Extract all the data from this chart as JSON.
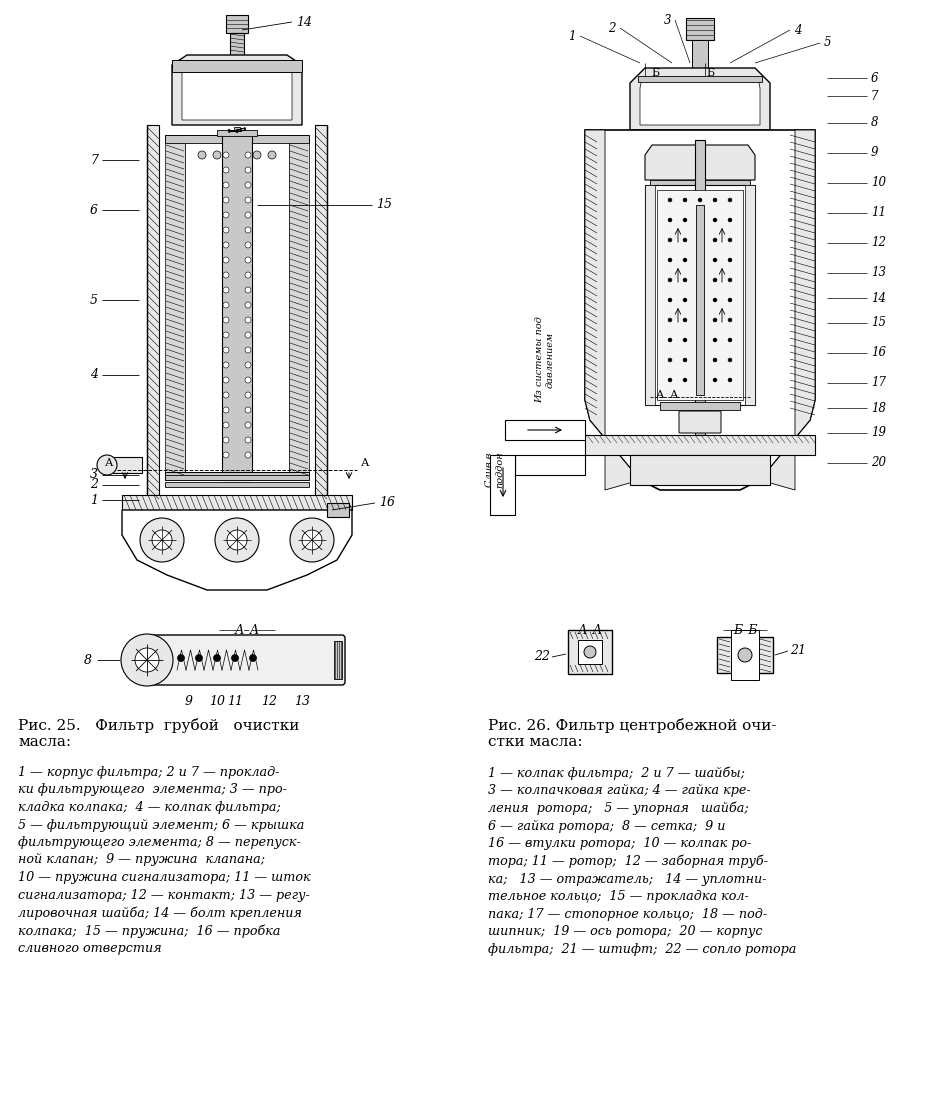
{
  "background_color": "#ffffff",
  "fig_width": 9.5,
  "fig_height": 10.97,
  "dpi": 100,
  "caption_left_title": "Рис. 25.   Фильтр  грубой   очистки\nмасла:",
  "caption_left_body": "1 — корпус фильтра; 2 и 7 — проклад-\nки фильтрующего  элемента; 3 — про-\nкладка колпака;  4 — колпак фильтра;\n5 — фильтрующий элемент; 6 — крышка\nфильтрующего элемента; 8 — перепуск-\nной клапан;  9 — пружина  клапана;\n10 — пружина сигнализатора; 11 — шток\nсигнализатора; 12 — контакт; 13 — регу-\nлировочная шайба; 14 — болт крепления\nколпака;  15 — пружина;  16 — пробка\nсливного отверстия",
  "caption_right_title": "Рис. 26. Фильтр центробежной очи-\nстки масла:",
  "caption_right_body": "1 — колпак фильтра;  2 и 7 — шайбы;\n3 — колпачковая гайка; 4 — гайка кре-\nления  ротора;   5 — упорная   шайба;\n6 — гайка ротора;  8 — сетка;  9 и\n16 — втулки ротора;  10 — колпак ро-\nтора; 11 — ротор;  12 — заборная труб-\nка;   13 — отражатель;   14 — уплотни-\nтельное кольцо;  15 — прокладка кол-\nпака; 17 — стопорное кольцо;  18 — под-\nшипник;  19 — ось ротора;  20 — корпус\nфильтра;  21 — штифт;  22 — сопло ротора"
}
